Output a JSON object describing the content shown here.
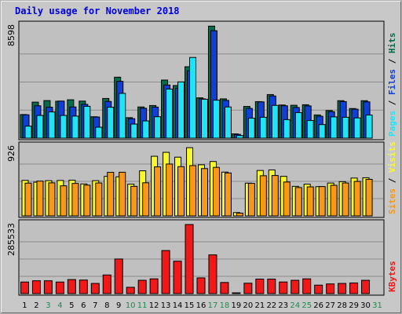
{
  "chart_data": {
    "type": "bar",
    "title": "Daily usage for November 2018",
    "colors": {
      "hits": "#066b4b",
      "files": "#0f3fd6",
      "pages": "#20e4f6",
      "visits": "#f8f830",
      "sites": "#f89818",
      "kbytes": "#f01818",
      "title": "#0000d8",
      "weekend_day": "#1d8a4e",
      "weekday": "#000000"
    },
    "days": [
      "1",
      "2",
      "3",
      "4",
      "5",
      "6",
      "7",
      "8",
      "9",
      "10",
      "11",
      "12",
      "13",
      "14",
      "15",
      "16",
      "17",
      "18",
      "19",
      "20",
      "21",
      "22",
      "23",
      "24",
      "25",
      "26",
      "27",
      "28",
      "29",
      "30",
      "31"
    ],
    "weekend_days": [
      3,
      4,
      10,
      11,
      17,
      18,
      24,
      25,
      31
    ],
    "panels": [
      {
        "name": "hits-files-pages",
        "ymax_label": "8598",
        "ymax": 8598,
        "right_label": [
          "Pages",
          "Files",
          "Hits"
        ],
        "series": [
          {
            "name": "Hits",
            "color": "#066b4b",
            "values": [
              1810,
              2760,
              2880,
              2830,
              2940,
              2840,
              1640,
              3040,
              4670,
              1570,
              2390,
              2500,
              4450,
              4030,
              5470,
              3090,
              8580,
              3010,
              330,
              2430,
              2800,
              3340,
              2540,
              2520,
              2560,
              1780,
              2120,
              2870,
              2270,
              2870,
              null
            ]
          },
          {
            "name": "Files",
            "color": "#0f3fd6",
            "values": [
              1790,
              2480,
              2370,
              2840,
              2390,
              2590,
              1620,
              2810,
              4350,
              1490,
              2290,
              2380,
              4070,
              3830,
              5160,
              3010,
              8230,
              2890,
              290,
              2280,
              2780,
              3230,
              2480,
              2350,
              2470,
              1680,
              2030,
              2800,
              2220,
              2780,
              null
            ]
          },
          {
            "name": "Pages",
            "color": "#20e4f6",
            "values": [
              920,
              1740,
              2010,
              1740,
              1690,
              2440,
              840,
              2370,
              3430,
              1080,
              1320,
              1640,
              3760,
              4310,
              6180,
              2980,
              2910,
              2390,
              200,
              1530,
              1600,
              2510,
              1420,
              1960,
              1350,
              1040,
              1630,
              1600,
              1550,
              1770,
              null
            ]
          }
        ]
      },
      {
        "name": "visits-sites",
        "ymax_label": "926",
        "ymax": 926,
        "right_label": [
          "Sites",
          "Visits"
        ],
        "series": [
          {
            "name": "Visits",
            "color": "#f8f830",
            "values": [
              476,
              452,
              472,
              475,
              478,
              428,
              472,
              530,
              524,
              425,
              604,
              799,
              852,
              787,
              914,
              685,
              729,
              587,
              44,
              439,
              609,
              616,
              530,
              396,
              425,
              392,
              440,
              459,
              507,
              511,
              null
            ]
          },
          {
            "name": "Sites",
            "color": "#f89818",
            "values": [
              439,
              466,
              443,
              403,
              435,
              412,
              441,
              584,
              585,
              396,
              444,
              657,
              695,
              660,
              674,
              634,
              650,
              575,
              37,
              436,
              538,
              541,
              454,
              380,
              389,
              393,
              410,
              441,
              462,
              490,
              null
            ]
          }
        ]
      },
      {
        "name": "kbytes",
        "ymax_label": "285533",
        "ymax": 285533,
        "right_label": [
          "KBytes"
        ],
        "series": [
          {
            "name": "KBytes",
            "color": "#f01818",
            "values": [
              47800,
              53000,
              53000,
              47800,
              58000,
              56000,
              42000,
              77000,
              143000,
              26000,
              55000,
              61000,
              178000,
              134000,
              285533,
              65000,
              160000,
              46000,
              1800,
              43000,
              60000,
              60000,
              48000,
              55000,
              61000,
              35000,
              40000,
              42000,
              44000,
              55000,
              null
            ]
          }
        ]
      }
    ]
  }
}
